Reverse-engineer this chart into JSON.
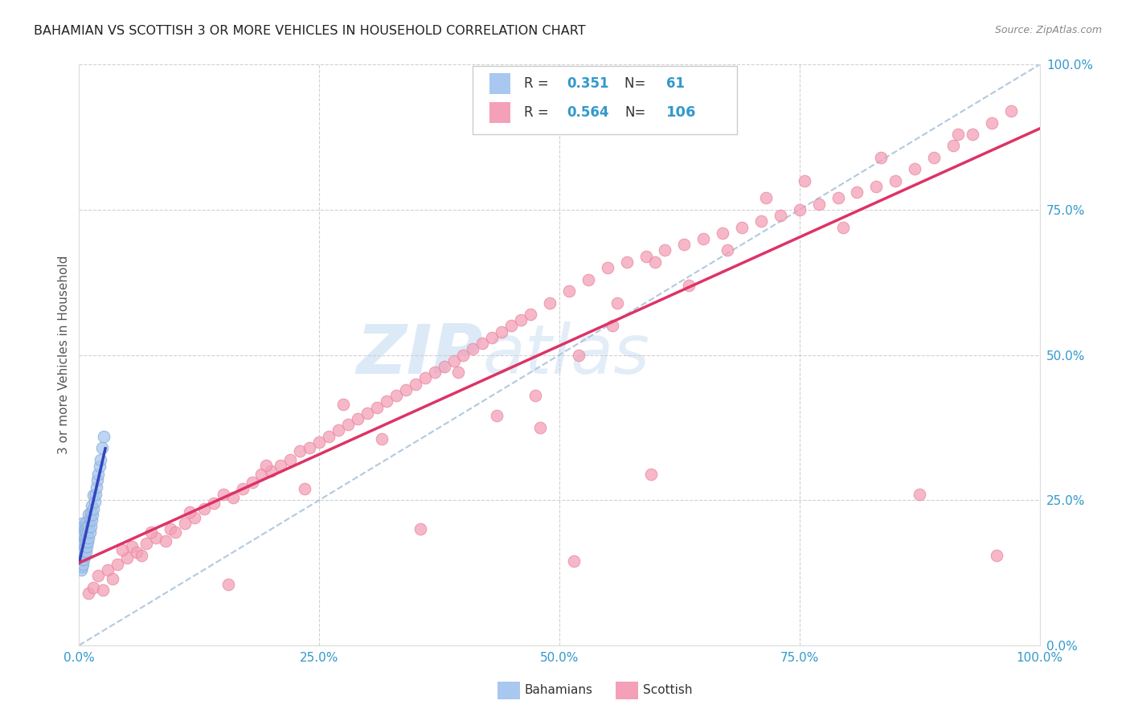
{
  "title": "BAHAMIAN VS SCOTTISH 3 OR MORE VEHICLES IN HOUSEHOLD CORRELATION CHART",
  "source": "Source: ZipAtlas.com",
  "ylabel": "3 or more Vehicles in Household",
  "watermark_zip": "ZIP",
  "watermark_atlas": "atlas",
  "legend_r_bahamian": "0.351",
  "legend_n_bahamian": "61",
  "legend_r_scottish": "0.564",
  "legend_n_scottish": "106",
  "bahamian_color": "#a8c8f0",
  "scottish_color": "#f4a0b8",
  "bahamian_line_color": "#3344bb",
  "scottish_line_color": "#dd3366",
  "diagonal_color": "#aac4dc",
  "background_color": "#ffffff",
  "bahamian_x": [
    0.001,
    0.001,
    0.001,
    0.001,
    0.002,
    0.002,
    0.002,
    0.002,
    0.002,
    0.002,
    0.003,
    0.003,
    0.003,
    0.003,
    0.003,
    0.003,
    0.003,
    0.004,
    0.004,
    0.004,
    0.004,
    0.004,
    0.005,
    0.005,
    0.005,
    0.005,
    0.005,
    0.006,
    0.006,
    0.006,
    0.006,
    0.007,
    0.007,
    0.007,
    0.007,
    0.008,
    0.008,
    0.008,
    0.009,
    0.009,
    0.01,
    0.01,
    0.01,
    0.011,
    0.011,
    0.012,
    0.012,
    0.013,
    0.013,
    0.014,
    0.015,
    0.015,
    0.016,
    0.017,
    0.018,
    0.019,
    0.02,
    0.021,
    0.022,
    0.024,
    0.026
  ],
  "bahamian_y": [
    0.155,
    0.165,
    0.175,
    0.185,
    0.13,
    0.145,
    0.16,
    0.17,
    0.18,
    0.19,
    0.135,
    0.148,
    0.16,
    0.17,
    0.182,
    0.195,
    0.21,
    0.14,
    0.155,
    0.168,
    0.182,
    0.198,
    0.148,
    0.162,
    0.175,
    0.19,
    0.205,
    0.155,
    0.17,
    0.185,
    0.2,
    0.162,
    0.178,
    0.195,
    0.212,
    0.17,
    0.188,
    0.205,
    0.178,
    0.196,
    0.185,
    0.205,
    0.225,
    0.195,
    0.218,
    0.205,
    0.228,
    0.215,
    0.24,
    0.225,
    0.235,
    0.258,
    0.248,
    0.26,
    0.272,
    0.285,
    0.295,
    0.308,
    0.32,
    0.34,
    0.36
  ],
  "scottish_x": [
    0.01,
    0.015,
    0.02,
    0.025,
    0.03,
    0.035,
    0.04,
    0.05,
    0.055,
    0.06,
    0.065,
    0.07,
    0.08,
    0.09,
    0.095,
    0.1,
    0.11,
    0.12,
    0.13,
    0.14,
    0.15,
    0.16,
    0.17,
    0.18,
    0.19,
    0.2,
    0.21,
    0.22,
    0.23,
    0.24,
    0.25,
    0.26,
    0.27,
    0.28,
    0.29,
    0.3,
    0.31,
    0.32,
    0.33,
    0.34,
    0.35,
    0.36,
    0.37,
    0.38,
    0.39,
    0.4,
    0.41,
    0.42,
    0.43,
    0.44,
    0.45,
    0.46,
    0.47,
    0.49,
    0.51,
    0.53,
    0.55,
    0.57,
    0.59,
    0.61,
    0.63,
    0.65,
    0.67,
    0.69,
    0.71,
    0.73,
    0.75,
    0.77,
    0.79,
    0.81,
    0.83,
    0.85,
    0.87,
    0.89,
    0.91,
    0.93,
    0.95,
    0.97,
    0.045,
    0.075,
    0.115,
    0.155,
    0.195,
    0.235,
    0.275,
    0.315,
    0.355,
    0.395,
    0.435,
    0.475,
    0.515,
    0.555,
    0.595,
    0.635,
    0.675,
    0.715,
    0.755,
    0.795,
    0.835,
    0.875,
    0.915,
    0.955,
    0.48,
    0.52,
    0.56,
    0.6
  ],
  "scottish_y": [
    0.09,
    0.1,
    0.12,
    0.095,
    0.13,
    0.115,
    0.14,
    0.15,
    0.17,
    0.16,
    0.155,
    0.175,
    0.185,
    0.18,
    0.2,
    0.195,
    0.21,
    0.22,
    0.235,
    0.245,
    0.26,
    0.255,
    0.27,
    0.28,
    0.295,
    0.3,
    0.31,
    0.32,
    0.335,
    0.34,
    0.35,
    0.36,
    0.37,
    0.38,
    0.39,
    0.4,
    0.41,
    0.42,
    0.43,
    0.44,
    0.45,
    0.46,
    0.47,
    0.48,
    0.49,
    0.5,
    0.51,
    0.52,
    0.53,
    0.54,
    0.55,
    0.56,
    0.57,
    0.59,
    0.61,
    0.63,
    0.65,
    0.66,
    0.67,
    0.68,
    0.69,
    0.7,
    0.71,
    0.72,
    0.73,
    0.74,
    0.75,
    0.76,
    0.77,
    0.78,
    0.79,
    0.8,
    0.82,
    0.84,
    0.86,
    0.88,
    0.9,
    0.92,
    0.165,
    0.195,
    0.23,
    0.105,
    0.31,
    0.27,
    0.415,
    0.355,
    0.2,
    0.47,
    0.395,
    0.43,
    0.145,
    0.55,
    0.295,
    0.62,
    0.68,
    0.77,
    0.8,
    0.72,
    0.84,
    0.26,
    0.88,
    0.155,
    0.375,
    0.5,
    0.59,
    0.66
  ],
  "xlim": [
    0.0,
    1.0
  ],
  "ylim": [
    0.0,
    1.0
  ],
  "xtick_vals": [
    0.0,
    0.25,
    0.5,
    0.75,
    1.0
  ],
  "ytick_vals": [
    0.0,
    0.25,
    0.5,
    0.75,
    1.0
  ],
  "xtick_labels": [
    "0.0%",
    "25.0%",
    "50.0%",
    "75.0%",
    "100.0%"
  ],
  "ytick_labels": [
    "0.0%",
    "25.0%",
    "50.0%",
    "75.0%",
    "100.0%"
  ]
}
